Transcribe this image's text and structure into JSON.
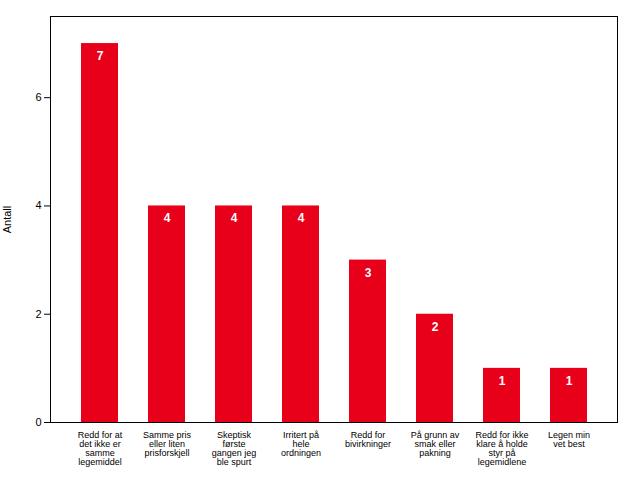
{
  "chart_data": {
    "type": "bar",
    "categories": [
      "Redd for at\ndet ikke er\nsamme\nlegemiddel",
      "Samme pris\neller liten\nprisforskjell",
      "Skeptisk\nførste\ngangen jeg\nble spurt",
      "Irritert på\nhele\nordningen",
      "Redd for\nbivirkninger",
      "På grunn av\nsmak eller\npakning",
      "Redd for ikke\nklare å holde\nstyr på\nlegemidlene",
      "Legen min\nvet best"
    ],
    "values": [
      7,
      4,
      4,
      4,
      3,
      2,
      1,
      1
    ],
    "color": "#e8001a",
    "ylabel": "Antall",
    "ylim": [
      0,
      7.5
    ],
    "yticks": [
      0,
      2,
      4,
      6
    ],
    "grid": false,
    "data_labels": true
  }
}
